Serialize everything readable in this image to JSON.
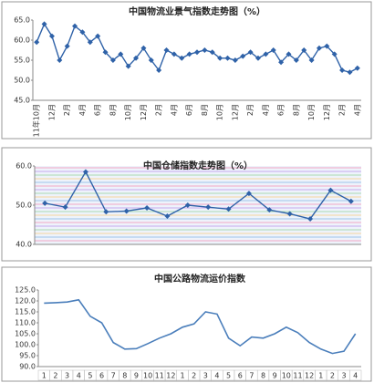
{
  "chart_data": [
    {
      "type": "line",
      "title": "中国物流业景气指数走势图（%）",
      "color": "#2f62a8",
      "marker": "diamond",
      "rotate_labels": true,
      "categories": [
        "11年10月",
        null,
        "12月",
        null,
        "2月",
        null,
        "4月",
        null,
        "6月",
        null,
        "8月",
        null,
        "10月",
        null,
        "12月",
        null,
        "2月",
        null,
        "4月",
        null,
        "6月",
        null,
        "8月",
        null,
        "10月",
        null,
        "12月",
        null,
        "2月",
        null,
        "4月",
        null,
        "6月",
        null,
        "8月",
        null,
        "10月",
        null,
        "12月",
        null,
        "2月",
        null,
        "4月"
      ],
      "values": [
        59.5,
        64.0,
        61.0,
        55.0,
        58.5,
        63.5,
        62.0,
        59.5,
        61.0,
        57.0,
        55.0,
        56.5,
        53.5,
        55.5,
        58.0,
        55.0,
        52.5,
        57.5,
        56.5,
        55.5,
        56.5,
        57.0,
        57.5,
        57.0,
        55.5,
        55.5,
        55.0,
        56.0,
        57.0,
        55.5,
        56.5,
        57.5,
        54.5,
        56.5,
        55.0,
        57.5,
        55.0,
        58.0,
        58.5,
        56.5,
        52.5,
        52.0,
        53.0
      ],
      "ylim": [
        45,
        65
      ],
      "yticks": [
        {
          "value": 45,
          "label": "45.0"
        },
        {
          "value": 50,
          "label": "50.0"
        },
        {
          "value": 55,
          "label": "55.0"
        },
        {
          "value": 60,
          "label": "60.0"
        },
        {
          "value": 65,
          "label": "65.0"
        }
      ]
    },
    {
      "type": "line",
      "title": "中国仓储指数走势图（%）",
      "color": "#2f62a8",
      "marker": "diamond",
      "stripes": true,
      "categories": [
        null,
        null,
        null,
        null,
        null,
        null,
        null,
        null,
        null,
        null,
        null,
        null,
        null,
        null,
        null,
        null
      ],
      "values": [
        50.5,
        49.5,
        58.5,
        48.3,
        48.5,
        49.3,
        47.2,
        50.0,
        49.5,
        49.0,
        53.0,
        48.8,
        47.8,
        46.5,
        53.8,
        51.0
      ],
      "ylim": [
        40,
        60
      ],
      "yticks": [
        {
          "value": 40,
          "label": "40.0"
        },
        {
          "value": 50,
          "label": "50.0"
        },
        {
          "value": 60,
          "label": "60.0"
        }
      ]
    },
    {
      "type": "line",
      "title": "中国公路物流运价指数",
      "color": "#4a7ebb",
      "marker": "none",
      "categories": [
        "1",
        "2",
        "3",
        "4",
        "5",
        "6",
        "7",
        "8",
        "9",
        "10",
        "11",
        "12",
        "1",
        "2",
        "3",
        "4",
        "5",
        "6",
        "7",
        "8",
        "9",
        "10",
        "11",
        "12",
        "1",
        "2",
        "3",
        "4"
      ],
      "values": [
        119.0,
        119.2,
        119.5,
        120.5,
        113.0,
        110.0,
        101.0,
        98.0,
        98.2,
        100.5,
        103.0,
        105.0,
        108.0,
        109.5,
        115.0,
        114.0,
        103.0,
        99.5,
        103.5,
        103.0,
        105.0,
        108.0,
        105.5,
        101.0,
        98.0,
        96.0,
        97.0,
        105.0
      ],
      "ylim": [
        90,
        125
      ],
      "yticks": [
        {
          "value": 90,
          "label": "90.0"
        },
        {
          "value": 95,
          "label": "95.0"
        },
        {
          "value": 100,
          "label": "100.0"
        },
        {
          "value": 105,
          "label": "105.0"
        },
        {
          "value": 110,
          "label": "110.0"
        },
        {
          "value": 115,
          "label": "115.0"
        },
        {
          "value": 120,
          "label": "120.0"
        },
        {
          "value": 125,
          "label": "125.0"
        }
      ]
    }
  ]
}
